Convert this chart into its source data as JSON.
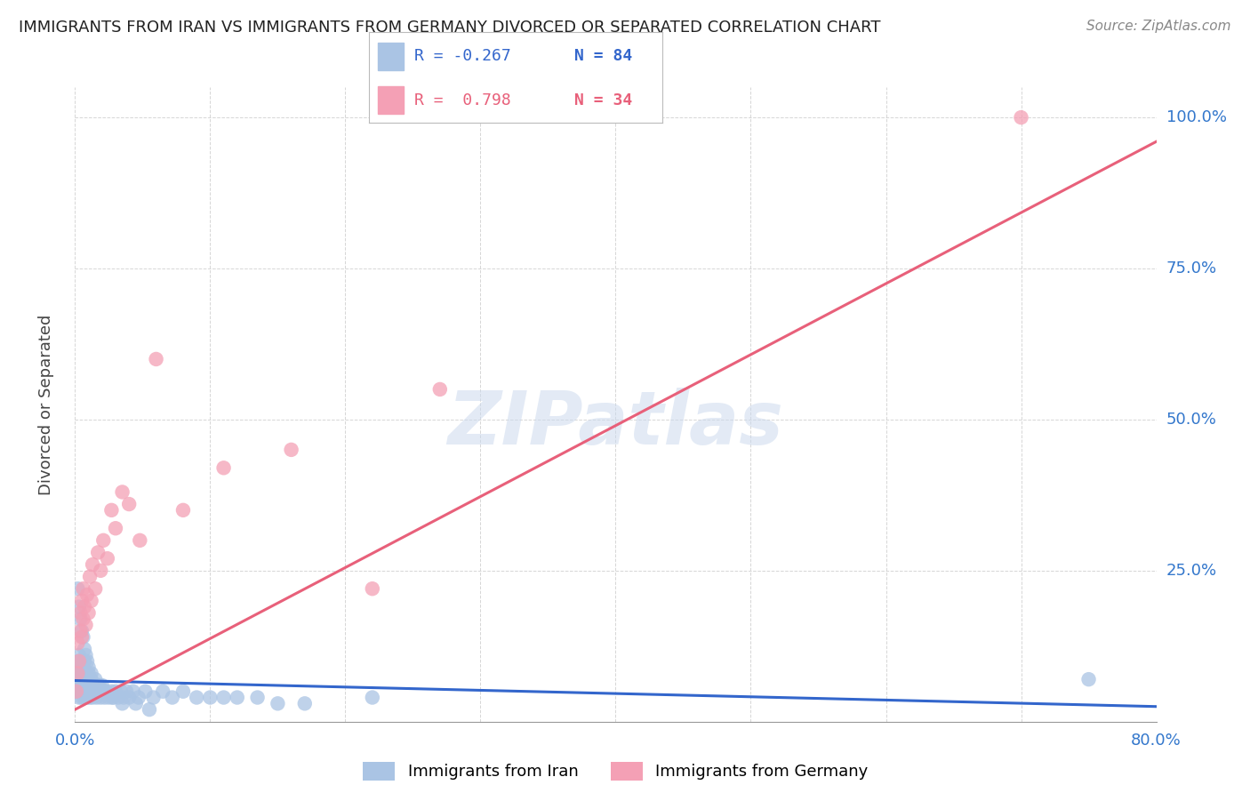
{
  "title": "IMMIGRANTS FROM IRAN VS IMMIGRANTS FROM GERMANY DIVORCED OR SEPARATED CORRELATION CHART",
  "source": "Source: ZipAtlas.com",
  "ylabel": "Divorced or Separated",
  "xlim": [
    0.0,
    0.8
  ],
  "ylim": [
    0.0,
    1.05
  ],
  "blue_R": "-0.267",
  "blue_N": "84",
  "pink_R": "0.798",
  "pink_N": "34",
  "blue_color": "#aac4e4",
  "pink_color": "#f4a0b5",
  "blue_line_color": "#3366cc",
  "pink_line_color": "#e8607a",
  "watermark": "ZIPatlas",
  "blue_points_x": [
    0.001,
    0.001,
    0.002,
    0.002,
    0.002,
    0.003,
    0.003,
    0.003,
    0.003,
    0.004,
    0.004,
    0.004,
    0.005,
    0.005,
    0.005,
    0.006,
    0.006,
    0.006,
    0.007,
    0.007,
    0.007,
    0.008,
    0.008,
    0.009,
    0.009,
    0.01,
    0.01,
    0.011,
    0.011,
    0.012,
    0.012,
    0.013,
    0.014,
    0.015,
    0.016,
    0.017,
    0.018,
    0.019,
    0.02,
    0.021,
    0.022,
    0.023,
    0.025,
    0.027,
    0.028,
    0.03,
    0.032,
    0.034,
    0.036,
    0.038,
    0.04,
    0.043,
    0.047,
    0.052,
    0.058,
    0.065,
    0.072,
    0.08,
    0.09,
    0.1,
    0.11,
    0.12,
    0.135,
    0.15,
    0.17,
    0.002,
    0.003,
    0.004,
    0.005,
    0.006,
    0.007,
    0.008,
    0.009,
    0.01,
    0.012,
    0.015,
    0.018,
    0.022,
    0.028,
    0.035,
    0.045,
    0.055,
    0.22,
    0.75
  ],
  "blue_points_y": [
    0.06,
    0.08,
    0.05,
    0.07,
    0.1,
    0.04,
    0.06,
    0.08,
    0.11,
    0.05,
    0.07,
    0.09,
    0.04,
    0.06,
    0.08,
    0.05,
    0.07,
    0.09,
    0.04,
    0.06,
    0.1,
    0.05,
    0.08,
    0.04,
    0.07,
    0.05,
    0.08,
    0.04,
    0.06,
    0.05,
    0.07,
    0.04,
    0.06,
    0.05,
    0.04,
    0.06,
    0.05,
    0.04,
    0.06,
    0.05,
    0.04,
    0.05,
    0.04,
    0.05,
    0.04,
    0.05,
    0.04,
    0.05,
    0.04,
    0.05,
    0.04,
    0.05,
    0.04,
    0.05,
    0.04,
    0.05,
    0.04,
    0.05,
    0.04,
    0.04,
    0.04,
    0.04,
    0.04,
    0.03,
    0.03,
    0.22,
    0.19,
    0.17,
    0.15,
    0.14,
    0.12,
    0.11,
    0.1,
    0.09,
    0.08,
    0.07,
    0.06,
    0.05,
    0.04,
    0.03,
    0.03,
    0.02,
    0.04,
    0.07
  ],
  "pink_points_x": [
    0.001,
    0.002,
    0.002,
    0.003,
    0.004,
    0.004,
    0.005,
    0.005,
    0.006,
    0.006,
    0.007,
    0.008,
    0.009,
    0.01,
    0.011,
    0.012,
    0.013,
    0.015,
    0.017,
    0.019,
    0.021,
    0.024,
    0.027,
    0.03,
    0.035,
    0.04,
    0.048,
    0.06,
    0.08,
    0.11,
    0.16,
    0.22,
    0.27,
    0.7
  ],
  "pink_points_y": [
    0.05,
    0.08,
    0.13,
    0.1,
    0.15,
    0.18,
    0.14,
    0.2,
    0.17,
    0.22,
    0.19,
    0.16,
    0.21,
    0.18,
    0.24,
    0.2,
    0.26,
    0.22,
    0.28,
    0.25,
    0.3,
    0.27,
    0.35,
    0.32,
    0.38,
    0.36,
    0.3,
    0.6,
    0.35,
    0.42,
    0.45,
    0.22,
    0.55,
    1.0
  ],
  "blue_line_x": [
    0.0,
    0.8
  ],
  "blue_line_y": [
    0.068,
    0.025
  ],
  "pink_line_x": [
    0.0,
    0.8
  ],
  "pink_line_y": [
    0.02,
    0.96
  ]
}
